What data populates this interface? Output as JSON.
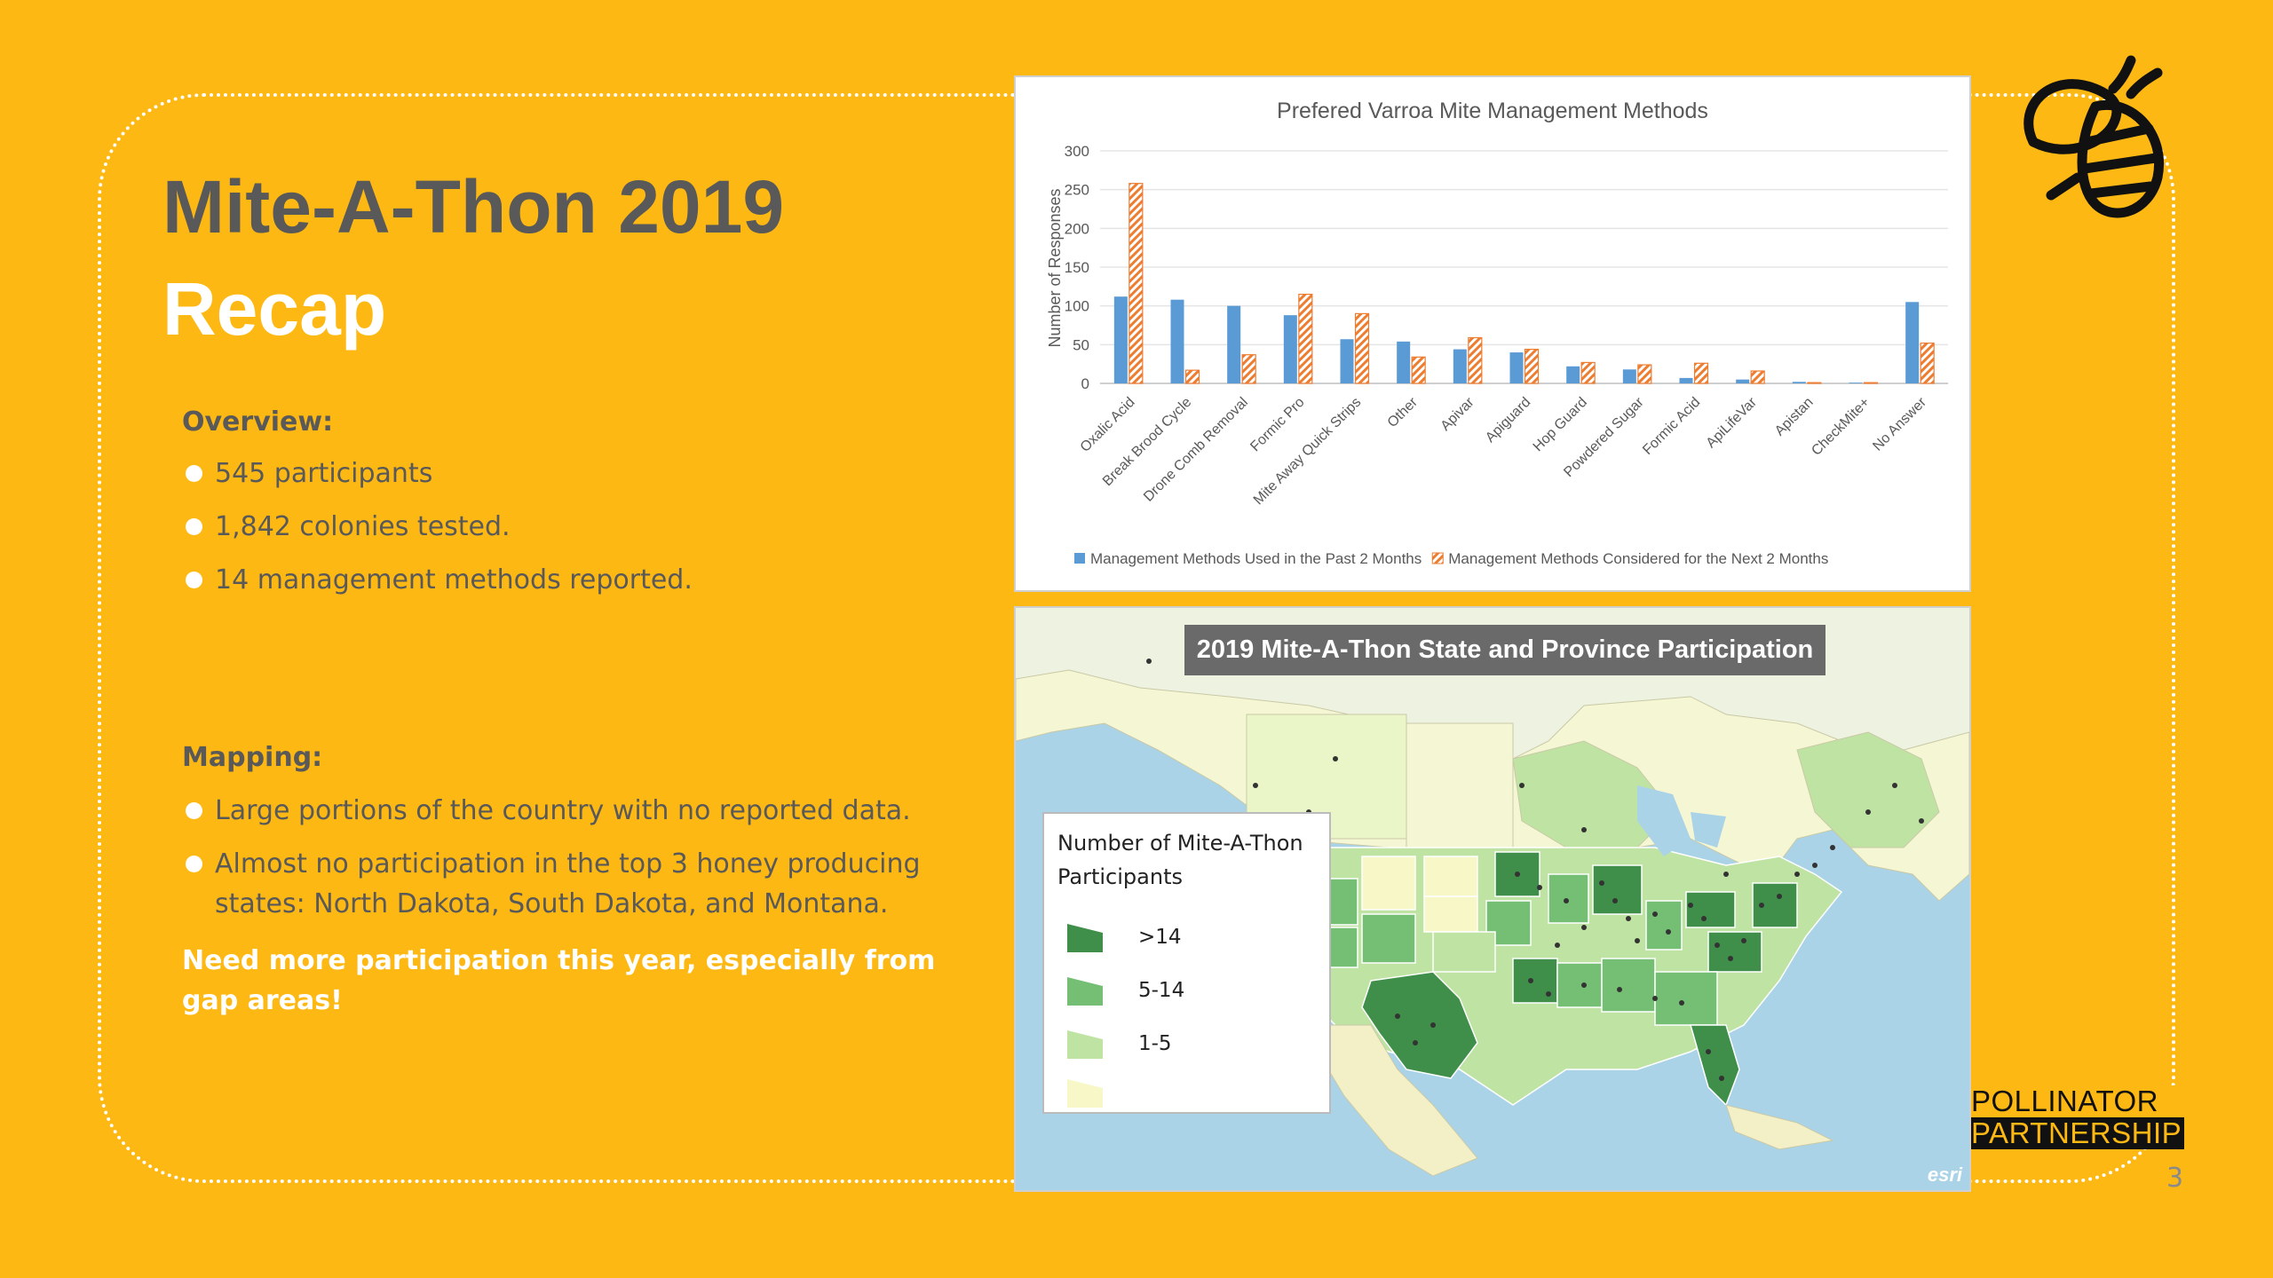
{
  "slide": {
    "title_line1": "Mite-A-Thon 2019",
    "title_line2": "Recap",
    "overview_heading": "Overview:",
    "overview_items": [
      "545 participants",
      "1,842 colonies tested.",
      "14 management methods reported."
    ],
    "mapping_heading": "Mapping:",
    "mapping_items": [
      "Large portions of the country with no reported data.",
      "Almost no participation in the top 3 honey producing states: North Dakota, South Dakota, and Montana."
    ],
    "callout": "Need more participation this year, especially from gap areas!",
    "page_number": "3",
    "brand_line1": "POLLINATOR",
    "brand_line2": "PARTNERSHIP",
    "logo_icon": "bee-icon",
    "colors": {
      "background": "#FDB813",
      "text_gray": "#595959",
      "white": "#FFFFFF"
    }
  },
  "chart_data": {
    "type": "bar",
    "title": "Prefered Varroa Mite Management Methods",
    "xlabel": "",
    "ylabel": "Number of Responses",
    "ylim": [
      0,
      300
    ],
    "yticks": [
      0,
      50,
      100,
      150,
      200,
      250,
      300
    ],
    "grid": true,
    "legend_position": "bottom",
    "categories": [
      "Oxalic Acid",
      "Break Brood Cycle",
      "Drone Comb Removal",
      "Formic Pro",
      "Mite Away Quick Strips",
      "Other",
      "Apivar",
      "Apiguard",
      "Hop Guard",
      "Powdered Sugar",
      "Formic Acid",
      "ApiLifeVar",
      "Apistan",
      "CheckMite+",
      "No Answer"
    ],
    "series": [
      {
        "name": "Management Methods Used in the Past 2 Months",
        "color": "#5B9BD5",
        "pattern": "solid",
        "values": [
          112,
          108,
          100,
          88,
          57,
          54,
          44,
          40,
          22,
          18,
          7,
          5,
          2,
          1,
          105
        ]
      },
      {
        "name": "Management Methods Considered for the Next 2 Months",
        "color": "#ED7D31",
        "pattern": "diagonal-hatch",
        "values": [
          258,
          17,
          37,
          115,
          90,
          34,
          59,
          44,
          27,
          24,
          26,
          16,
          1,
          1,
          52
        ]
      }
    ]
  },
  "map": {
    "title": "2019 Mite-A-Thon State and Province Participation",
    "legend_title": "Number of Mite-A-Thon Participants",
    "legend": [
      {
        "label": ">14",
        "color": "#3f8e4a"
      },
      {
        "label": "5-14",
        "color": "#75bf75"
      },
      {
        "label": "1-5",
        "color": "#bfe3a3"
      },
      {
        "label": "",
        "color": "#f7f7c8"
      }
    ],
    "attribution": "esri"
  }
}
